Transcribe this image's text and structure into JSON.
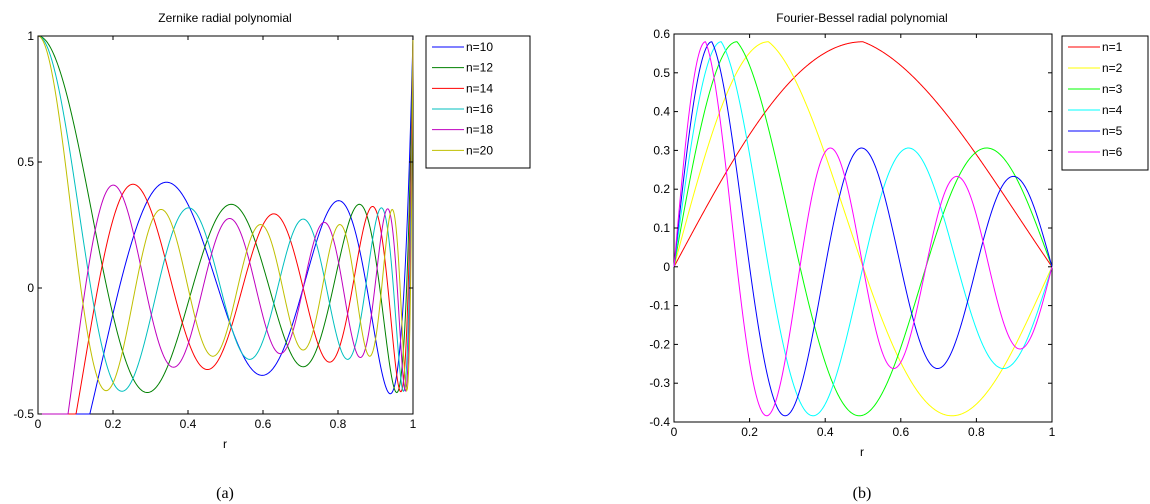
{
  "chart_data": [
    {
      "type": "line",
      "title": "Zernike radial polynomial",
      "xlabel": "r",
      "ylabel": "",
      "caption": "(a)",
      "xlim": [
        0,
        1
      ],
      "ylim": [
        -0.5,
        1
      ],
      "xticks": [
        "0",
        "0.2",
        "0.4",
        "0.6",
        "0.8",
        "1"
      ],
      "yticks": [
        "-0.5",
        "0",
        "0.5",
        "1"
      ],
      "legend_position": "top-right-outside",
      "grid": false,
      "series": [
        {
          "name": "n=10",
          "color": "#0000ff",
          "n": 10,
          "m": 0
        },
        {
          "name": "n=12",
          "color": "#008000",
          "n": 12,
          "m": 0
        },
        {
          "name": "n=14",
          "color": "#ff0000",
          "n": 14,
          "m": 0
        },
        {
          "name": "n=16",
          "color": "#00bfbf",
          "n": 16,
          "m": 0
        },
        {
          "name": "n=18",
          "color": "#bf00bf",
          "n": 18,
          "m": 0
        },
        {
          "name": "n=20",
          "color": "#bfbf00",
          "n": 20,
          "m": 0
        }
      ]
    },
    {
      "type": "line",
      "title": "Fourier-Bessel radial polynomial",
      "xlabel": "r",
      "ylabel": "",
      "caption": "(b)",
      "xlim": [
        0,
        1
      ],
      "ylim": [
        -0.4,
        0.6
      ],
      "xticks": [
        "0",
        "0.2",
        "0.4",
        "0.6",
        "0.8",
        "1"
      ],
      "yticks": [
        "-0.4",
        "-0.3",
        "-0.2",
        "-0.1",
        "0",
        "0.1",
        "0.2",
        "0.3",
        "0.4",
        "0.5",
        "0.6"
      ],
      "legend_position": "top-right-outside",
      "grid": false,
      "series": [
        {
          "name": "n=1",
          "color": "#ff0000",
          "n": 1
        },
        {
          "name": "n=2",
          "color": "#ffff00",
          "n": 2
        },
        {
          "name": "n=3",
          "color": "#00ff00",
          "n": 3
        },
        {
          "name": "n=4",
          "color": "#00ffff",
          "n": 4
        },
        {
          "name": "n=5",
          "color": "#0000ff",
          "n": 5
        },
        {
          "name": "n=6",
          "color": "#ff00ff",
          "n": 6
        }
      ]
    }
  ]
}
